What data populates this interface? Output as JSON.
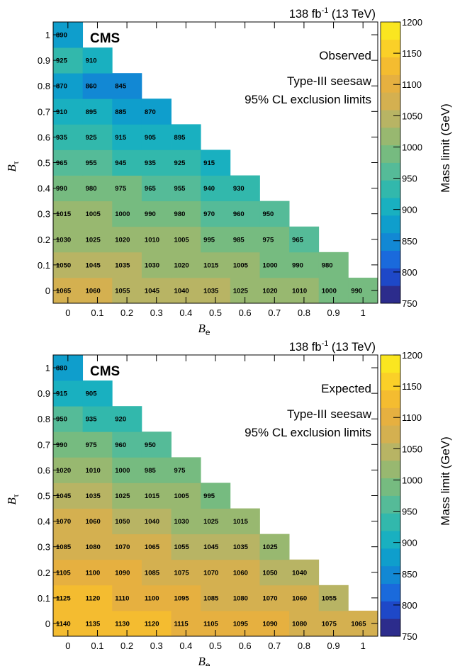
{
  "palette": [
    "#2c2c8c",
    "#1e48c8",
    "#1a6adc",
    "#1288d4",
    "#0f9ecc",
    "#19b0c0",
    "#32b8ac",
    "#55bb98",
    "#76bb80",
    "#98b870",
    "#b8b464",
    "#d4b050",
    "#e6b040",
    "#f4bc30",
    "#fad028",
    "#fae620"
  ],
  "chart_data": [
    {
      "type": "heatmap",
      "header": "138 fb",
      "header_sup": "-1",
      "header_tail": " (13 TeV)",
      "cms_label": "CMS",
      "status": "Observed",
      "model": "Type-III seesaw",
      "limit_text": "95% CL exclusion limits",
      "xlabel": "B",
      "xlabel_sub": "e",
      "ylabel": "B",
      "ylabel_sub": "τ",
      "zlabel": "Mass limit (GeV)",
      "x_ticks": [
        "0",
        "0.1",
        "0.2",
        "0.3",
        "0.4",
        "0.5",
        "0.6",
        "0.7",
        "0.8",
        "0.9",
        "1"
      ],
      "y_ticks": [
        "0",
        "0.1",
        "0.2",
        "0.3",
        "0.4",
        "0.5",
        "0.6",
        "0.7",
        "0.8",
        "0.9",
        "1"
      ],
      "z_ticks": [
        "750",
        "800",
        "850",
        "900",
        "950",
        "1000",
        "1050",
        "1100",
        "1150",
        "1200"
      ],
      "zlim": [
        750,
        1200
      ],
      "values": [
        [
          1065,
          1060,
          1055,
          1045,
          1040,
          1035,
          1025,
          1020,
          1010,
          1000,
          990
        ],
        [
          1050,
          1045,
          1035,
          1030,
          1020,
          1015,
          1005,
          1000,
          990,
          980
        ],
        [
          1030,
          1025,
          1020,
          1010,
          1005,
          995,
          985,
          975,
          965
        ],
        [
          1015,
          1005,
          1000,
          990,
          980,
          970,
          960,
          950
        ],
        [
          990,
          980,
          975,
          965,
          955,
          940,
          930
        ],
        [
          965,
          955,
          945,
          935,
          925,
          915
        ],
        [
          935,
          925,
          915,
          905,
          895
        ],
        [
          910,
          895,
          885,
          870
        ],
        [
          870,
          860,
          845
        ],
        [
          925,
          910
        ],
        [
          890
        ]
      ]
    },
    {
      "type": "heatmap",
      "header": "138 fb",
      "header_sup": "-1",
      "header_tail": " (13 TeV)",
      "cms_label": "CMS",
      "status": "Expected",
      "model": "Type-III seesaw",
      "limit_text": "95% CL exclusion limits",
      "xlabel": "B",
      "xlabel_sub": "e",
      "ylabel": "B",
      "ylabel_sub": "τ",
      "zlabel": "Mass limit (GeV)",
      "x_ticks": [
        "0",
        "0.1",
        "0.2",
        "0.3",
        "0.4",
        "0.5",
        "0.6",
        "0.7",
        "0.8",
        "0.9",
        "1"
      ],
      "y_ticks": [
        "0",
        "0.1",
        "0.2",
        "0.3",
        "0.4",
        "0.5",
        "0.6",
        "0.7",
        "0.8",
        "0.9",
        "1"
      ],
      "z_ticks": [
        "750",
        "800",
        "850",
        "900",
        "950",
        "1000",
        "1050",
        "1100",
        "1150",
        "1200"
      ],
      "zlim": [
        750,
        1200
      ],
      "values": [
        [
          1140,
          1135,
          1130,
          1120,
          1115,
          1105,
          1095,
          1090,
          1080,
          1075,
          1065
        ],
        [
          1125,
          1120,
          1110,
          1100,
          1095,
          1085,
          1080,
          1070,
          1060,
          1055
        ],
        [
          1105,
          1100,
          1090,
          1085,
          1075,
          1070,
          1060,
          1050,
          1040
        ],
        [
          1085,
          1080,
          1070,
          1065,
          1055,
          1045,
          1035,
          1025
        ],
        [
          1070,
          1060,
          1050,
          1040,
          1030,
          1025,
          1015
        ],
        [
          1045,
          1035,
          1025,
          1015,
          1005,
          995
        ],
        [
          1020,
          1010,
          1000,
          985,
          975
        ],
        [
          990,
          975,
          960,
          950
        ],
        [
          950,
          935,
          920
        ],
        [
          915,
          905
        ],
        [
          880
        ]
      ]
    }
  ]
}
